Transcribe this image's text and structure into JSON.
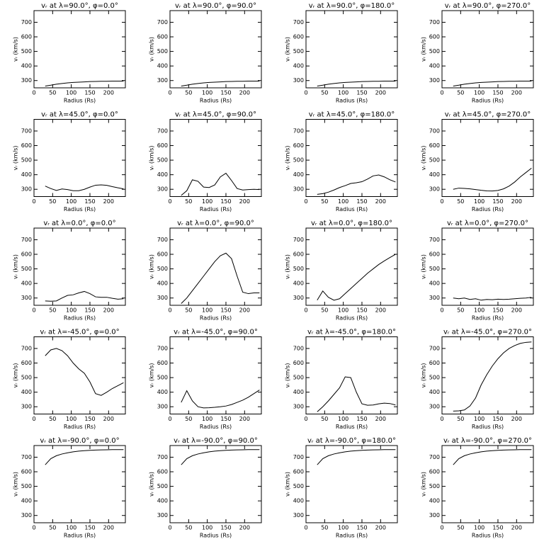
{
  "chart_data": [
    {
      "type": "line",
      "title": "vᵣ at λ=90.0°, φ=0.0°",
      "xlabel": "Radius (Rs)",
      "ylabel": "vᵣ (km/s)",
      "xlim": [
        0,
        245
      ],
      "ylim": [
        250,
        780
      ],
      "xticks": [
        0,
        50,
        100,
        150,
        200
      ],
      "yticks": [
        300,
        400,
        500,
        600,
        700
      ],
      "color": "#000000",
      "x": [
        30,
        45,
        60,
        75,
        90,
        105,
        120,
        135,
        150,
        165,
        180,
        195,
        210,
        225,
        240
      ],
      "values": [
        262,
        268,
        275,
        280,
        284,
        287,
        289,
        291,
        293,
        294,
        295,
        295,
        296,
        296,
        296
      ]
    },
    {
      "type": "line",
      "title": "vᵣ at λ=90.0°, φ=90.0°",
      "xlabel": "Radius (Rs)",
      "ylabel": "vᵣ (km/s)",
      "xlim": [
        0,
        245
      ],
      "ylim": [
        250,
        780
      ],
      "xticks": [
        0,
        50,
        100,
        150,
        200
      ],
      "yticks": [
        300,
        400,
        500,
        600,
        700
      ],
      "color": "#000000",
      "x": [
        30,
        45,
        60,
        75,
        90,
        105,
        120,
        135,
        150,
        165,
        180,
        195,
        210,
        225,
        240
      ],
      "values": [
        262,
        268,
        275,
        280,
        284,
        287,
        289,
        291,
        293,
        294,
        295,
        295,
        296,
        296,
        296
      ]
    },
    {
      "type": "line",
      "title": "vᵣ at λ=90.0°, φ=180.0°",
      "xlabel": "Radius (Rs)",
      "ylabel": "vᵣ (km/s)",
      "xlim": [
        0,
        245
      ],
      "ylim": [
        250,
        780
      ],
      "xticks": [
        0,
        50,
        100,
        150,
        200
      ],
      "yticks": [
        300,
        400,
        500,
        600,
        700
      ],
      "color": "#000000",
      "x": [
        30,
        45,
        60,
        75,
        90,
        105,
        120,
        135,
        150,
        165,
        180,
        195,
        210,
        225,
        240
      ],
      "values": [
        262,
        268,
        275,
        280,
        284,
        287,
        289,
        291,
        293,
        294,
        295,
        295,
        296,
        296,
        296
      ]
    },
    {
      "type": "line",
      "title": "vᵣ at λ=90.0°, φ=270.0°",
      "xlabel": "Radius (Rs)",
      "ylabel": "vᵣ (km/s)",
      "xlim": [
        0,
        245
      ],
      "ylim": [
        250,
        780
      ],
      "xticks": [
        0,
        50,
        100,
        150,
        200
      ],
      "yticks": [
        300,
        400,
        500,
        600,
        700
      ],
      "color": "#000000",
      "x": [
        30,
        45,
        60,
        75,
        90,
        105,
        120,
        135,
        150,
        165,
        180,
        195,
        210,
        225,
        240
      ],
      "values": [
        262,
        268,
        275,
        280,
        284,
        287,
        289,
        291,
        293,
        294,
        295,
        295,
        296,
        296,
        296
      ]
    },
    {
      "type": "line",
      "title": "vᵣ at λ=45.0°, φ=0.0°",
      "xlabel": "Radius (Rs)",
      "ylabel": "vᵣ (km/s)",
      "xlim": [
        0,
        245
      ],
      "ylim": [
        250,
        780
      ],
      "xticks": [
        0,
        50,
        100,
        150,
        200
      ],
      "yticks": [
        300,
        400,
        500,
        600,
        700
      ],
      "color": "#000000",
      "x": [
        30,
        45,
        60,
        75,
        90,
        105,
        120,
        135,
        150,
        165,
        180,
        195,
        210,
        225,
        240
      ],
      "values": [
        322,
        305,
        292,
        302,
        298,
        290,
        290,
        300,
        315,
        328,
        330,
        327,
        318,
        310,
        303
      ]
    },
    {
      "type": "line",
      "title": "vᵣ at λ=45.0°, φ=90.0°",
      "xlabel": "Radius (Rs)",
      "ylabel": "vᵣ (km/s)",
      "xlim": [
        0,
        245
      ],
      "ylim": [
        250,
        780
      ],
      "xticks": [
        0,
        50,
        100,
        150,
        200
      ],
      "yticks": [
        300,
        400,
        500,
        600,
        700
      ],
      "color": "#000000",
      "x": [
        30,
        45,
        60,
        75,
        90,
        105,
        120,
        135,
        150,
        165,
        180,
        195,
        210,
        225,
        240
      ],
      "values": [
        258,
        290,
        365,
        355,
        315,
        312,
        330,
        385,
        410,
        360,
        305,
        295,
        298,
        300,
        298
      ]
    },
    {
      "type": "line",
      "title": "vᵣ at λ=45.0°, φ=180.0°",
      "xlabel": "Radius (Rs)",
      "ylabel": "vᵣ (km/s)",
      "xlim": [
        0,
        245
      ],
      "ylim": [
        250,
        780
      ],
      "xticks": [
        0,
        50,
        100,
        150,
        200
      ],
      "yticks": [
        300,
        400,
        500,
        600,
        700
      ],
      "color": "#000000",
      "x": [
        30,
        45,
        60,
        75,
        90,
        105,
        120,
        135,
        150,
        165,
        180,
        195,
        210,
        225,
        240
      ],
      "values": [
        265,
        270,
        280,
        295,
        312,
        325,
        340,
        345,
        352,
        370,
        392,
        398,
        385,
        365,
        350
      ]
    },
    {
      "type": "line",
      "title": "vᵣ at λ=45.0°, φ=270.0°",
      "xlabel": "Radius (Rs)",
      "ylabel": "vᵣ (km/s)",
      "xlim": [
        0,
        245
      ],
      "ylim": [
        250,
        780
      ],
      "xticks": [
        0,
        50,
        100,
        150,
        200
      ],
      "yticks": [
        300,
        400,
        500,
        600,
        700
      ],
      "color": "#000000",
      "x": [
        30,
        45,
        60,
        75,
        90,
        105,
        120,
        135,
        150,
        165,
        180,
        195,
        210,
        225,
        240
      ],
      "values": [
        300,
        308,
        306,
        303,
        298,
        293,
        289,
        288,
        292,
        303,
        322,
        350,
        385,
        415,
        445
      ]
    },
    {
      "type": "line",
      "title": "vᵣ at λ=0.0°, φ=0.0°",
      "xlabel": "Radius (Rs)",
      "ylabel": "vᵣ (km/s)",
      "xlim": [
        0,
        245
      ],
      "ylim": [
        250,
        780
      ],
      "xticks": [
        0,
        50,
        100,
        150,
        200
      ],
      "yticks": [
        300,
        400,
        500,
        600,
        700
      ],
      "color": "#000000",
      "x": [
        30,
        45,
        60,
        75,
        90,
        105,
        120,
        135,
        150,
        165,
        180,
        195,
        210,
        225,
        240
      ],
      "values": [
        280,
        278,
        280,
        300,
        318,
        322,
        335,
        345,
        330,
        308,
        305,
        305,
        298,
        292,
        295
      ]
    },
    {
      "type": "line",
      "title": "vᵣ at λ=0.0°, φ=90.0°",
      "xlabel": "Radius (Rs)",
      "ylabel": "vᵣ (km/s)",
      "xlim": [
        0,
        245
      ],
      "ylim": [
        250,
        780
      ],
      "xticks": [
        0,
        50,
        100,
        150,
        200
      ],
      "yticks": [
        300,
        400,
        500,
        600,
        700
      ],
      "color": "#000000",
      "x": [
        30,
        45,
        60,
        75,
        90,
        105,
        120,
        135,
        150,
        165,
        180,
        195,
        210,
        225,
        240
      ],
      "values": [
        262,
        300,
        350,
        400,
        450,
        500,
        550,
        590,
        608,
        570,
        450,
        340,
        330,
        335,
        335
      ]
    },
    {
      "type": "line",
      "title": "vᵣ at λ=0.0°, φ=180.0°",
      "xlabel": "Radius (Rs)",
      "ylabel": "vᵣ (km/s)",
      "xlim": [
        0,
        245
      ],
      "ylim": [
        250,
        780
      ],
      "xticks": [
        0,
        50,
        100,
        150,
        200
      ],
      "yticks": [
        300,
        400,
        500,
        600,
        700
      ],
      "color": "#000000",
      "x": [
        30,
        45,
        60,
        75,
        90,
        105,
        120,
        135,
        150,
        165,
        180,
        195,
        210,
        225,
        240
      ],
      "values": [
        285,
        348,
        305,
        285,
        295,
        330,
        365,
        400,
        435,
        470,
        500,
        530,
        555,
        578,
        600
      ]
    },
    {
      "type": "line",
      "title": "vᵣ at λ=0.0°, φ=270.0°",
      "xlabel": "Radius (Rs)",
      "ylabel": "vᵣ (km/s)",
      "xlim": [
        0,
        245
      ],
      "ylim": [
        250,
        780
      ],
      "xticks": [
        0,
        50,
        100,
        150,
        200
      ],
      "yticks": [
        300,
        400,
        500,
        600,
        700
      ],
      "color": "#000000",
      "x": [
        30,
        45,
        60,
        75,
        90,
        105,
        120,
        135,
        150,
        165,
        180,
        195,
        210,
        225,
        240
      ],
      "values": [
        300,
        295,
        300,
        290,
        295,
        285,
        290,
        288,
        292,
        290,
        292,
        295,
        298,
        300,
        305
      ]
    },
    {
      "type": "line",
      "title": "vᵣ at λ=-45.0°, φ=0.0°",
      "xlabel": "Radius (Rs)",
      "ylabel": "vᵣ (km/s)",
      "xlim": [
        0,
        245
      ],
      "ylim": [
        250,
        780
      ],
      "xticks": [
        0,
        50,
        100,
        150,
        200
      ],
      "yticks": [
        300,
        400,
        500,
        600,
        700
      ],
      "color": "#000000",
      "x": [
        30,
        45,
        60,
        75,
        90,
        105,
        120,
        135,
        150,
        165,
        180,
        195,
        210,
        225,
        240
      ],
      "values": [
        650,
        690,
        700,
        685,
        650,
        600,
        560,
        530,
        470,
        390,
        378,
        400,
        425,
        445,
        465
      ]
    },
    {
      "type": "line",
      "title": "vᵣ at λ=-45.0°, φ=90.0°",
      "xlabel": "Radius (Rs)",
      "ylabel": "vᵣ (km/s)",
      "xlim": [
        0,
        245
      ],
      "ylim": [
        250,
        780
      ],
      "xticks": [
        0,
        50,
        100,
        150,
        200
      ],
      "yticks": [
        300,
        400,
        500,
        600,
        700
      ],
      "color": "#000000",
      "x": [
        30,
        45,
        60,
        75,
        90,
        105,
        120,
        135,
        150,
        165,
        180,
        195,
        210,
        225,
        240
      ],
      "values": [
        330,
        410,
        340,
        300,
        292,
        293,
        296,
        300,
        305,
        315,
        330,
        345,
        365,
        390,
        415
      ]
    },
    {
      "type": "line",
      "title": "vᵣ at λ=-45.0°, φ=180.0°",
      "xlabel": "Radius (Rs)",
      "ylabel": "vᵣ (km/s)",
      "xlim": [
        0,
        245
      ],
      "ylim": [
        250,
        780
      ],
      "xticks": [
        0,
        50,
        100,
        150,
        200
      ],
      "yticks": [
        300,
        400,
        500,
        600,
        700
      ],
      "color": "#000000",
      "x": [
        30,
        45,
        60,
        75,
        90,
        105,
        120,
        135,
        150,
        165,
        180,
        195,
        210,
        225,
        240
      ],
      "values": [
        265,
        300,
        340,
        385,
        430,
        505,
        500,
        400,
        320,
        310,
        312,
        320,
        325,
        322,
        312
      ]
    },
    {
      "type": "line",
      "title": "vᵣ at λ=-45.0°, φ=270.0°",
      "xlabel": "Radius (Rs)",
      "ylabel": "vᵣ (km/s)",
      "xlim": [
        0,
        245
      ],
      "ylim": [
        250,
        780
      ],
      "xticks": [
        0,
        50,
        100,
        150,
        200
      ],
      "yticks": [
        300,
        400,
        500,
        600,
        700
      ],
      "color": "#000000",
      "x": [
        30,
        45,
        60,
        75,
        90,
        105,
        120,
        135,
        150,
        165,
        180,
        195,
        210,
        225,
        240
      ],
      "values": [
        270,
        272,
        278,
        305,
        360,
        450,
        520,
        580,
        630,
        670,
        700,
        720,
        735,
        742,
        745
      ]
    },
    {
      "type": "line",
      "title": "vᵣ at λ=-90.0°, φ=0.0°",
      "xlabel": "Radius (Rs)",
      "ylabel": "vᵣ (km/s)",
      "xlim": [
        0,
        245
      ],
      "ylim": [
        250,
        780
      ],
      "xticks": [
        0,
        50,
        100,
        150,
        200
      ],
      "yticks": [
        300,
        400,
        500,
        600,
        700
      ],
      "color": "#000000",
      "x": [
        30,
        45,
        60,
        75,
        90,
        105,
        120,
        135,
        150,
        165,
        180,
        195,
        210,
        225,
        240
      ],
      "values": [
        648,
        690,
        710,
        722,
        730,
        737,
        742,
        745,
        747,
        749,
        750,
        751,
        752,
        752,
        752
      ]
    },
    {
      "type": "line",
      "title": "vᵣ at λ=-90.0°, φ=90.0°",
      "xlabel": "Radius (Rs)",
      "ylabel": "vᵣ (km/s)",
      "xlim": [
        0,
        245
      ],
      "ylim": [
        250,
        780
      ],
      "xticks": [
        0,
        50,
        100,
        150,
        200
      ],
      "yticks": [
        300,
        400,
        500,
        600,
        700
      ],
      "color": "#000000",
      "x": [
        30,
        45,
        60,
        75,
        90,
        105,
        120,
        135,
        150,
        165,
        180,
        195,
        210,
        225,
        240
      ],
      "values": [
        648,
        690,
        710,
        722,
        730,
        737,
        742,
        745,
        747,
        749,
        750,
        751,
        752,
        752,
        752
      ]
    },
    {
      "type": "line",
      "title": "vᵣ at λ=-90.0°, φ=180.0°",
      "xlabel": "Radius (Rs)",
      "ylabel": "vᵣ (km/s)",
      "xlim": [
        0,
        245
      ],
      "ylim": [
        250,
        780
      ],
      "xticks": [
        0,
        50,
        100,
        150,
        200
      ],
      "yticks": [
        300,
        400,
        500,
        600,
        700
      ],
      "color": "#000000",
      "x": [
        30,
        45,
        60,
        75,
        90,
        105,
        120,
        135,
        150,
        165,
        180,
        195,
        210,
        225,
        240
      ],
      "values": [
        648,
        690,
        710,
        722,
        730,
        737,
        742,
        745,
        747,
        749,
        750,
        751,
        752,
        752,
        752
      ]
    },
    {
      "type": "line",
      "title": "vᵣ at λ=-90.0°, φ=270.0°",
      "xlabel": "Radius (Rs)",
      "ylabel": "vᵣ (km/s)",
      "xlim": [
        0,
        245
      ],
      "ylim": [
        250,
        780
      ],
      "xticks": [
        0,
        50,
        100,
        150,
        200
      ],
      "yticks": [
        300,
        400,
        500,
        600,
        700
      ],
      "color": "#000000",
      "x": [
        30,
        45,
        60,
        75,
        90,
        105,
        120,
        135,
        150,
        165,
        180,
        195,
        210,
        225,
        240
      ],
      "values": [
        648,
        690,
        710,
        722,
        730,
        737,
        742,
        745,
        747,
        749,
        750,
        751,
        752,
        752,
        752
      ]
    }
  ]
}
